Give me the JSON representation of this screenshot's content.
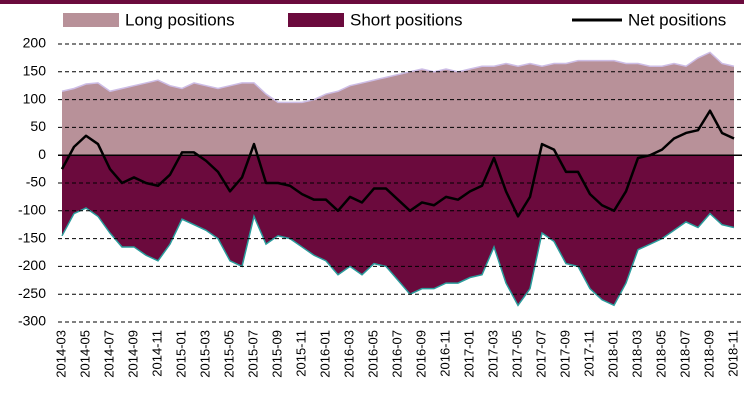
{
  "chart_data": {
    "type": "area",
    "categories": [
      "2014-03",
      null,
      "2014-05",
      null,
      "2014-07",
      null,
      "2014-09",
      null,
      "2014-11",
      null,
      "2015-01",
      null,
      "2015-03",
      null,
      "2015-05",
      null,
      "2015-07",
      null,
      "2015-09",
      null,
      "2015-11",
      null,
      "2016-01",
      null,
      "2016-03",
      null,
      "2016-05",
      null,
      "2016-07",
      null,
      "2016-09",
      null,
      "2016-11",
      null,
      "2017-01",
      null,
      "2017-03",
      null,
      "2017-05",
      null,
      "2017-07",
      null,
      "2017-09",
      null,
      "2017-11",
      null,
      "2018-01",
      null,
      "2018-03",
      null,
      "2018-05",
      null,
      "2018-07",
      null,
      "2018-09",
      null,
      "2018-11"
    ],
    "series": [
      {
        "name": "Long positions",
        "kind": "area",
        "color": "#b89199",
        "edge_color": "#cdbde6",
        "values": [
          115,
          120,
          128,
          130,
          115,
          120,
          125,
          130,
          135,
          125,
          120,
          130,
          125,
          120,
          125,
          130,
          130,
          110,
          95,
          95,
          95,
          100,
          110,
          115,
          125,
          130,
          135,
          140,
          145,
          150,
          155,
          150,
          155,
          150,
          155,
          160,
          160,
          165,
          160,
          165,
          160,
          165,
          165,
          170,
          170,
          170,
          170,
          165,
          165,
          160,
          160,
          165,
          160,
          175,
          185,
          165,
          160
        ]
      },
      {
        "name": "Short positions",
        "kind": "area",
        "color": "#6b0a3d",
        "edge_color": "#2a9c9c",
        "values": [
          -145,
          -105,
          -95,
          -110,
          -140,
          -165,
          -165,
          -180,
          -190,
          -160,
          -115,
          -125,
          -135,
          -150,
          -190,
          -200,
          -110,
          -160,
          -145,
          -150,
          -165,
          -180,
          -190,
          -215,
          -200,
          -215,
          -195,
          -200,
          -225,
          -250,
          -240,
          -240,
          -230,
          -230,
          -220,
          -215,
          -165,
          -230,
          -270,
          -240,
          -140,
          -155,
          -195,
          -200,
          -240,
          -260,
          -270,
          -230,
          -170,
          -160,
          -150,
          -135,
          -120,
          -130,
          -105,
          -125,
          -130
        ]
      },
      {
        "name": "Net positions",
        "kind": "line",
        "color": "#000000",
        "values": [
          -25,
          15,
          35,
          20,
          -25,
          -50,
          -40,
          -50,
          -55,
          -35,
          5,
          5,
          -10,
          -30,
          -65,
          -40,
          20,
          -50,
          -50,
          -55,
          -70,
          -80,
          -80,
          -100,
          -75,
          -85,
          -60,
          -60,
          -80,
          -100,
          -85,
          -90,
          -75,
          -80,
          -65,
          -55,
          -5,
          -65,
          -110,
          -75,
          20,
          10,
          -30,
          -30,
          -70,
          -90,
          -100,
          -65,
          -5,
          0,
          10,
          30,
          40,
          45,
          80,
          40,
          30
        ]
      }
    ],
    "ylim": [
      -300,
      200
    ],
    "yticks": [
      -300,
      -250,
      -200,
      -150,
      -100,
      -50,
      0,
      50,
      100,
      150,
      200
    ],
    "grid": true
  }
}
